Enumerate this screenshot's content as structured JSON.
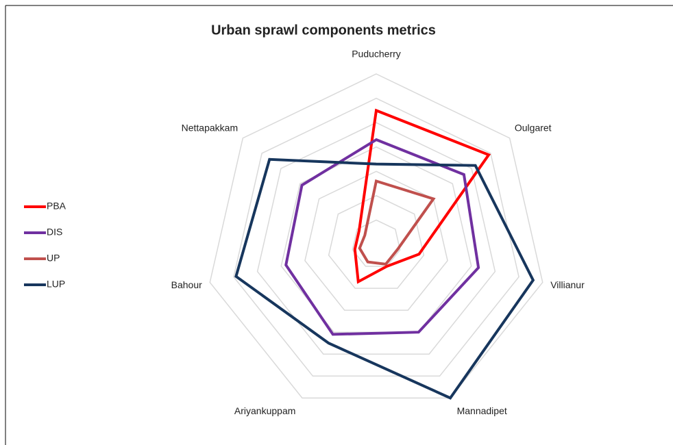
{
  "chart_data": {
    "type": "radar",
    "title": "Urban sprawl components metrics",
    "categories": [
      "Puducherry",
      "Oulgaret",
      "Villianur",
      "Mannadipet",
      "Ariyankuppam",
      "Bahour",
      "Nettapakkam"
    ],
    "series": [
      {
        "name": "PBA",
        "color": "#ff0000",
        "values": [
          5.5,
          5.9,
          1.8,
          1.0,
          1.7,
          0.9,
          0.9
        ]
      },
      {
        "name": "DIS",
        "color": "#7030a0",
        "values": [
          4.3,
          4.6,
          4.3,
          4.0,
          4.1,
          3.8,
          3.9
        ]
      },
      {
        "name": "UP",
        "color": "#c0504d",
        "values": [
          2.6,
          3.0,
          0.9,
          0.9,
          0.8,
          0.7,
          0.6
        ]
      },
      {
        "name": "LUP",
        "color": "#17365d",
        "values": [
          3.3,
          5.2,
          6.6,
          7.0,
          4.5,
          5.9,
          5.6
        ]
      }
    ],
    "ylim": [
      0,
      7
    ],
    "yticks": [
      1,
      2,
      3,
      4,
      5,
      6,
      7
    ],
    "grid": true,
    "legend": "left"
  }
}
